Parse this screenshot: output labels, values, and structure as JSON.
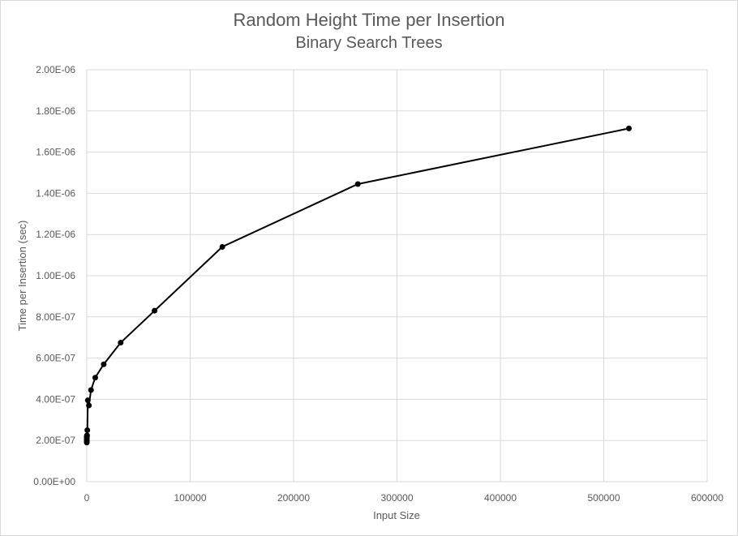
{
  "chart_data": {
    "type": "scatter",
    "title": "Random Height Time per Insertion",
    "subtitle": "Binary Search Trees",
    "xlabel": "Input Size",
    "ylabel": "Time per Insertion (sec)",
    "xlim": [
      0,
      600000
    ],
    "ylim": [
      0,
      2e-06
    ],
    "grid": true,
    "x_ticks": [
      "0",
      "100000",
      "200000",
      "300000",
      "400000",
      "500000",
      "600000"
    ],
    "y_ticks": [
      "0.00E+00",
      "2.00E-07",
      "4.00E-07",
      "6.00E-07",
      "8.00E-07",
      "1.00E-06",
      "1.20E-06",
      "1.40E-06",
      "1.60E-06",
      "1.80E-06",
      "2.00E-06"
    ],
    "series": [
      {
        "x": [
          1,
          2,
          4,
          8,
          16,
          32,
          64,
          128,
          256,
          512,
          1024,
          2048,
          4096,
          8192,
          16384,
          32768,
          65536,
          131072,
          262144,
          524288
        ],
        "y": [
          1.9e-07,
          1.95e-07,
          2e-07,
          2.05e-07,
          2.1e-07,
          2.15e-07,
          2.2e-07,
          2.2e-07,
          2.25e-07,
          2.5e-07,
          3.95e-07,
          3.7e-07,
          4.45e-07,
          5.05e-07,
          5.7e-07,
          6.75e-07,
          8.3e-07,
          1.14e-06,
          1.445e-06,
          1.715e-06
        ]
      }
    ],
    "colors": {
      "line": "#000000",
      "grid": "#d9d9d9",
      "text": "#595959"
    }
  }
}
